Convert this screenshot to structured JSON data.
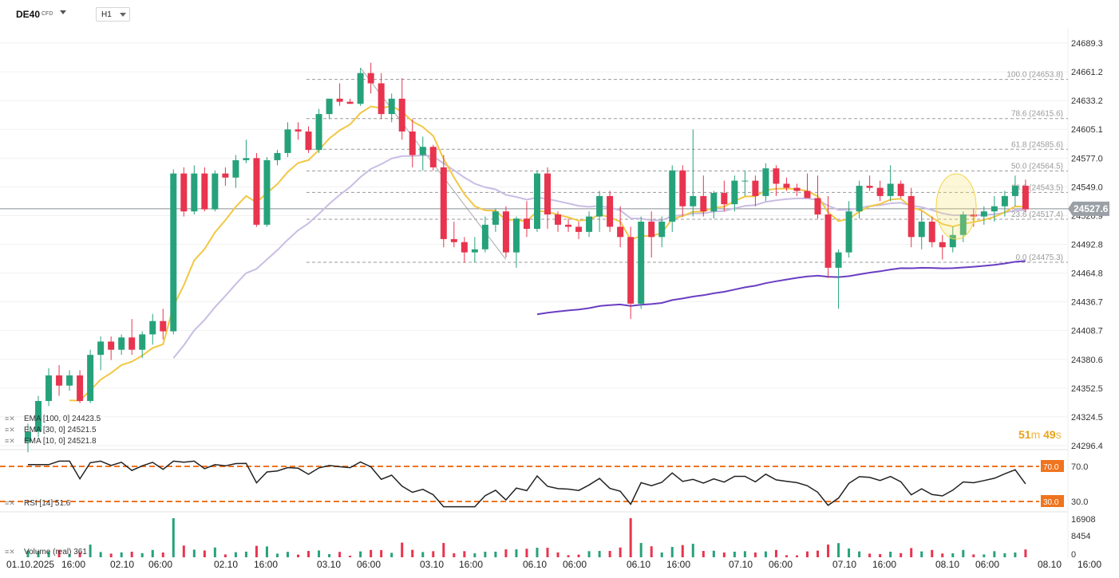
{
  "header": {
    "symbol": "DE40",
    "symbol_type": "CFD",
    "timeframe": "H1"
  },
  "price_axis": {
    "ticks": [
      "24689.3",
      "24661.2",
      "24633.2",
      "24605.1",
      "24577.0",
      "24549.0",
      "24520.9",
      "24492.8",
      "24464.8",
      "24436.7",
      "24408.7",
      "24380.6",
      "24352.5",
      "24324.5",
      "24296.4"
    ],
    "current_price": "24527.6"
  },
  "time_axis": {
    "labels": [
      "01.10.2025",
      "16:00",
      "02.10",
      "06:00",
      "02.10",
      "16:00",
      "03.10",
      "06:00",
      "03.10",
      "16:00",
      "06.10",
      "06:00",
      "06.10",
      "16:00",
      "07.10",
      "06:00",
      "07.10",
      "16:00",
      "08.10",
      "06:00",
      "08.10",
      "16:00"
    ]
  },
  "fibonacci": {
    "levels": [
      {
        "label": "100.0 (24653.8)",
        "value": 24653.8
      },
      {
        "label": "78.6 (24615.6)",
        "value": 24615.6
      },
      {
        "label": "61.8 (24585.6)",
        "value": 24585.6
      },
      {
        "label": "50.0 (24564.5)",
        "value": 24564.5
      },
      {
        "label": "38.2 (24543.5)",
        "value": 24543.5
      },
      {
        "label": "23.6 (24517.4)",
        "value": 24517.4
      },
      {
        "label": "0.0 (24475.3)",
        "value": 24475.3
      }
    ]
  },
  "indicators": {
    "ema100": "EMA [100, 0] 24423.5",
    "ema30": "EMA [30, 0] 24521.5",
    "ema10": "EMA [10, 0] 24521.8"
  },
  "countdown": {
    "minutes": "51",
    "m": "m",
    "seconds": "49",
    "s": "s"
  },
  "rsi": {
    "label": "RSI [14] 51.6",
    "upper": "70.0",
    "lower": "30.0"
  },
  "volume": {
    "label": "Volume (real) 361",
    "ticks": [
      "16908",
      "8454",
      "0"
    ]
  },
  "colors": {
    "bull": "#26a27b",
    "bear": "#e8344e",
    "ema10": "#f2c744",
    "ema30": "#c9bde3",
    "ema100": "#6a3ec2",
    "rsi_level": "#f0741e",
    "current_price_bg": "#9aa0a6"
  },
  "chart_data": {
    "type": "candlestick",
    "price_range": [
      24296.4,
      24689.3
    ],
    "candles_ohlc": [
      [
        24300,
        24318,
        24290,
        24310
      ],
      [
        24310,
        24345,
        24305,
        24340
      ],
      [
        24340,
        24372,
        24335,
        24365
      ],
      [
        24365,
        24375,
        24345,
        24355
      ],
      [
        24355,
        24370,
        24350,
        24365
      ],
      [
        24365,
        24370,
        24338,
        24340
      ],
      [
        24340,
        24390,
        24338,
        24385
      ],
      [
        24385,
        24403,
        24370,
        24398
      ],
      [
        24398,
        24403,
        24380,
        24390
      ],
      [
        24390,
        24405,
        24385,
        24402
      ],
      [
        24402,
        24420,
        24385,
        24390
      ],
      [
        24390,
        24408,
        24382,
        24405
      ],
      [
        24405,
        24425,
        24395,
        24418
      ],
      [
        24418,
        24430,
        24400,
        24408
      ],
      [
        24408,
        24566,
        24405,
        24562
      ],
      [
        24562,
        24568,
        24520,
        24525
      ],
      [
        24525,
        24570,
        24522,
        24562
      ],
      [
        24562,
        24568,
        24525,
        24527
      ],
      [
        24527,
        24565,
        24525,
        24562
      ],
      [
        24562,
        24568,
        24550,
        24558
      ],
      [
        24558,
        24580,
        24548,
        24575
      ],
      [
        24575,
        24595,
        24572,
        24577
      ],
      [
        24577,
        24582,
        24510,
        24512
      ],
      [
        24512,
        24578,
        24510,
        24575
      ],
      [
        24575,
        24585,
        24570,
        24582
      ],
      [
        24582,
        24612,
        24578,
        24605
      ],
      [
        24605,
        24612,
        24595,
        24603
      ],
      [
        24603,
        24608,
        24582,
        24585
      ],
      [
        24585,
        24625,
        24582,
        24620
      ],
      [
        24620,
        24635,
        24615,
        24635
      ],
      [
        24635,
        24650,
        24628,
        24632
      ],
      [
        24632,
        24635,
        24630,
        24630
      ],
      [
        24630,
        24665,
        24628,
        24660
      ],
      [
        24660,
        24670,
        24640,
        24650
      ],
      [
        24650,
        24660,
        24615,
        24620
      ],
      [
        24620,
        24640,
        24612,
        24635
      ],
      [
        24635,
        24655,
        24595,
        24603
      ],
      [
        24603,
        24615,
        24568,
        24580
      ],
      [
        24580,
        24598,
        24565,
        24588
      ],
      [
        24588,
        24590,
        24565,
        24568
      ],
      [
        24568,
        24580,
        24490,
        24498
      ],
      [
        24498,
        24515,
        24490,
        24495
      ],
      [
        24495,
        24500,
        24475,
        24485
      ],
      [
        24485,
        24500,
        24475,
        24488
      ],
      [
        24488,
        24520,
        24485,
        24512
      ],
      [
        24512,
        24528,
        24505,
        24525
      ],
      [
        24525,
        24530,
        24480,
        24485
      ],
      [
        24485,
        24520,
        24470,
        24518
      ],
      [
        24518,
        24535,
        24500,
        24508
      ],
      [
        24508,
        24565,
        24505,
        24562
      ],
      [
        24562,
        24568,
        24508,
        24522
      ],
      [
        24522,
        24525,
        24505,
        24512
      ],
      [
        24512,
        24518,
        24505,
        24510
      ],
      [
        24510,
        24515,
        24498,
        24505
      ],
      [
        24505,
        24525,
        24500,
        24520
      ],
      [
        24520,
        24545,
        24505,
        24540
      ],
      [
        24540,
        24545,
        24505,
        24510
      ],
      [
        24510,
        24530,
        24490,
        24500
      ],
      [
        24500,
        24510,
        24420,
        24435
      ],
      [
        24435,
        24520,
        24430,
        24515
      ],
      [
        24515,
        24525,
        24480,
        24500
      ],
      [
        24500,
        24520,
        24490,
        24515
      ],
      [
        24515,
        24570,
        24505,
        24565
      ],
      [
        24565,
        24570,
        24520,
        24530
      ],
      [
        24530,
        24605,
        24520,
        24540
      ],
      [
        24540,
        24560,
        24520,
        24525
      ],
      [
        24525,
        24545,
        24518,
        24543
      ],
      [
        24543,
        24555,
        24525,
        24532
      ],
      [
        24532,
        24560,
        24525,
        24555
      ],
      [
        24555,
        24565,
        24540,
        24555
      ],
      [
        24555,
        24560,
        24530,
        24540
      ],
      [
        24540,
        24572,
        24535,
        24567
      ],
      [
        24567,
        24570,
        24540,
        24552
      ],
      [
        24552,
        24558,
        24545,
        24548
      ],
      [
        24548,
        24552,
        24540,
        24545
      ],
      [
        24545,
        24562,
        24538,
        24538
      ],
      [
        24538,
        24560,
        24518,
        24522
      ],
      [
        24522,
        24540,
        24460,
        24470
      ],
      [
        24470,
        24488,
        24430,
        24485
      ],
      [
        24485,
        24535,
        24480,
        24525
      ],
      [
        24525,
        24555,
        24518,
        24550
      ],
      [
        24550,
        24560,
        24545,
        24548
      ],
      [
        24548,
        24555,
        24535,
        24540
      ],
      [
        24540,
        24570,
        24535,
        24552
      ],
      [
        24552,
        24555,
        24538,
        24540
      ],
      [
        24540,
        24548,
        24490,
        24500
      ],
      [
        24500,
        24525,
        24488,
        24515
      ],
      [
        24515,
        24520,
        24490,
        24495
      ],
      [
        24495,
        24502,
        24478,
        24490
      ],
      [
        24490,
        24510,
        24485,
        24502
      ],
      [
        24502,
        24525,
        24495,
        24522
      ],
      [
        24522,
        24528,
        24510,
        24520
      ],
      [
        24520,
        24530,
        24512,
        24525
      ],
      [
        24525,
        24540,
        24515,
        24530
      ],
      [
        24530,
        24545,
        24520,
        24540
      ],
      [
        24540,
        24560,
        24530,
        24550
      ],
      [
        24550,
        24556,
        24524,
        24527
      ]
    ],
    "ema10": "24521.8",
    "ema30": "24521.5",
    "ema100": "24423.5",
    "rsi_last": 51.6,
    "volume_last": 361
  }
}
